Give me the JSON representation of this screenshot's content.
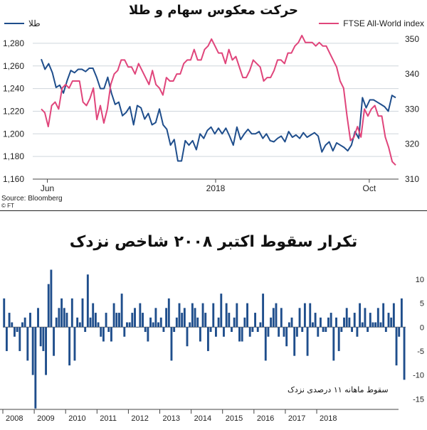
{
  "panel1": {
    "title": "حرکت معکوس سهام و طلا",
    "source": "Source: Bloomberg",
    "credit": "© FT"
  },
  "panel2": {
    "title": "تکرار سقوط اکتبر ۲۰۰۸ شاخص نزدک",
    "annotation": "سقوط ماهانه ۱۱ درصدی نزدک"
  },
  "colors": {
    "gold_line": "#1f4e8c",
    "ftse_line": "#e0457b",
    "bars": "#1f4e8c",
    "grid": "#cfd6dc",
    "axis_text": "#222222"
  },
  "chart_data": [
    {
      "type": "line",
      "title": "حرکت معکوس سهام و طلا",
      "xlabel": "",
      "x_tick_labels": [
        "Jun",
        "2018",
        "Oct"
      ],
      "left_axis": {
        "ticks": [
          1160,
          1180,
          1200,
          1220,
          1240,
          1260,
          1280
        ],
        "ylim": [
          1160,
          1290
        ]
      },
      "right_axis": {
        "ticks": [
          310,
          320,
          330,
          340,
          350
        ],
        "ylim": [
          310,
          352
        ]
      },
      "grid": true,
      "series": [
        {
          "name": "طلا",
          "axis": "left",
          "values": [
            1266,
            1257,
            1262,
            1254,
            1241,
            1243,
            1236,
            1247,
            1256,
            1254,
            1257,
            1257,
            1255,
            1258,
            1258,
            1250,
            1240,
            1240,
            1250,
            1236,
            1226,
            1228,
            1216,
            1219,
            1224,
            1208,
            1225,
            1223,
            1213,
            1218,
            1208,
            1210,
            1222,
            1208,
            1204,
            1190,
            1195,
            1176,
            1176,
            1194,
            1190,
            1194,
            1186,
            1200,
            1196,
            1203,
            1206,
            1200,
            1205,
            1200,
            1205,
            1198,
            1190,
            1206,
            1195,
            1200,
            1204,
            1200,
            1200,
            1202,
            1196,
            1200,
            1194,
            1193,
            1196,
            1198,
            1193,
            1202,
            1197,
            1199,
            1196,
            1201,
            1197,
            1199,
            1201,
            1198,
            1184,
            1190,
            1193,
            1185,
            1192,
            1190,
            1188,
            1185,
            1190,
            1202,
            1196,
            1232,
            1223,
            1230,
            1230,
            1228,
            1226,
            1224,
            1220,
            1234,
            1232
          ],
          "legend": "top-left"
        },
        {
          "name": "FTSE All-World index",
          "axis": "right",
          "values": [
            330,
            329,
            325,
            331,
            332,
            330,
            336,
            337,
            336,
            338,
            338,
            338,
            332,
            331,
            333,
            336,
            327,
            331,
            326,
            330,
            337,
            340,
            341,
            344,
            344,
            342,
            342,
            340,
            343,
            341,
            339,
            337,
            341,
            337,
            336,
            334,
            339,
            338,
            338,
            340,
            340,
            343,
            344,
            344,
            347,
            344,
            344,
            347,
            348,
            350,
            348,
            346,
            346,
            343,
            347,
            344,
            345,
            342,
            339,
            339,
            341,
            344,
            343,
            342,
            338,
            339,
            339,
            341,
            344,
            344,
            343,
            346,
            346,
            348,
            349,
            351,
            349,
            349,
            349,
            348,
            349,
            348,
            348,
            346,
            344,
            342,
            338,
            336,
            328,
            321,
            322,
            325,
            322,
            330,
            328,
            330,
            331,
            328,
            328,
            322,
            319,
            315,
            314
          ],
          "legend": "top-right"
        }
      ]
    },
    {
      "type": "bar",
      "title": "تکرار سقوط اکتبر ۲۰۰۸ شاخص نزدک",
      "x_tick_labels": [
        "2008",
        "2009",
        "2010",
        "2011",
        "2012",
        "2013",
        "2014",
        "2015",
        "2016",
        "2017",
        "2018"
      ],
      "y_ticks": [
        10,
        5,
        0,
        -5,
        -10,
        -15
      ],
      "ylim": [
        -16,
        14
      ],
      "grid": false,
      "values": [
        6,
        -5,
        3,
        1,
        -2,
        -1,
        -5,
        1,
        2,
        -7,
        3,
        -10,
        -17,
        4,
        -4,
        -5,
        -10,
        9,
        12,
        -6,
        2,
        4,
        6,
        4,
        3,
        -8,
        6,
        -7,
        2,
        1,
        6,
        -1,
        11,
        2,
        5,
        3,
        1,
        -2,
        -3,
        3,
        -1,
        -3,
        5,
        3,
        3,
        7,
        -2,
        1,
        1,
        3,
        4,
        0,
        5,
        3,
        -1,
        -3,
        2,
        1,
        4,
        1,
        2,
        -1,
        4,
        6,
        -7,
        -1,
        2,
        5,
        3,
        4,
        -4,
        1,
        5,
        4,
        2,
        -3,
        5,
        3,
        -5,
        -1,
        5,
        -2,
        2,
        7,
        -2,
        5,
        3,
        -1,
        2,
        5,
        -3,
        -3,
        2,
        5,
        -2,
        -1,
        3,
        -1,
        1,
        7,
        -7,
        -2,
        2,
        4,
        5,
        -2,
        4,
        -2,
        -4,
        1,
        2,
        -6,
        -2,
        4,
        -1,
        5,
        -6,
        5,
        1,
        3,
        -2,
        2,
        -1,
        -1,
        2,
        3,
        -7,
        2,
        -5,
        -1,
        2,
        4,
        2,
        -1,
        3,
        -2,
        5,
        1,
        4,
        -1,
        3,
        1,
        1,
        4,
        1,
        5,
        -1,
        3,
        2,
        5,
        -8,
        -2,
        6,
        -11
      ],
      "annotation": "سقوط ماهانه ۱۱ درصدی نزدک"
    }
  ]
}
